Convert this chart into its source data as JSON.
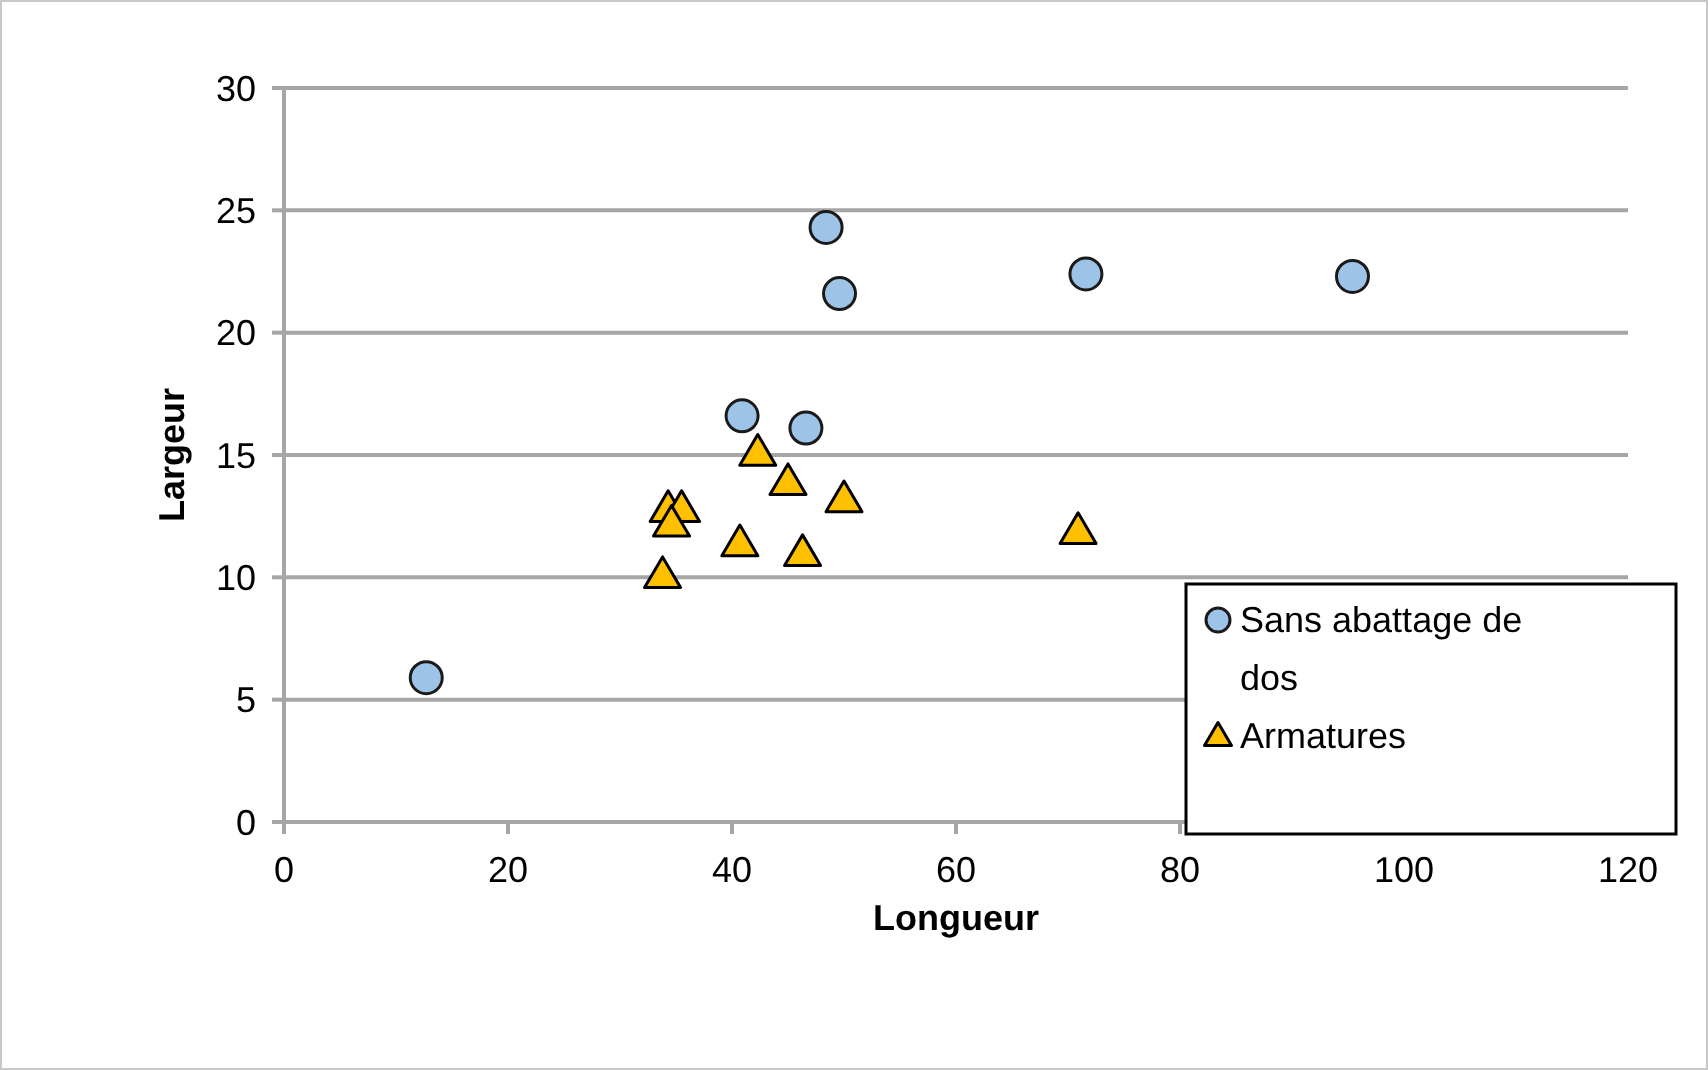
{
  "chart_data": {
    "type": "scatter",
    "xlabel": "Longueur",
    "ylabel": "Largeur",
    "xlim": [
      0,
      120
    ],
    "xticks": [
      0,
      20,
      40,
      60,
      80,
      100,
      120
    ],
    "ylim": [
      0,
      30
    ],
    "yticks": [
      0,
      5,
      10,
      15,
      20,
      25,
      30
    ],
    "grid": "y",
    "legend": "bottom right",
    "series": [
      {
        "name": "Sans abattage de dos",
        "color": "#9dc3e6",
        "marker": "circle",
        "x": [
          12.7,
          48.4,
          49.6,
          40.9,
          46.6,
          71.6,
          95.4
        ],
        "values": [
          5.9,
          24.3,
          21.6,
          16.6,
          16.1,
          22.4,
          22.3
        ]
      },
      {
        "name": "Armatures",
        "color": "#ffc000",
        "marker": "triangle",
        "x": [
          42.3,
          45,
          50,
          34.3,
          35.5,
          34.6,
          40.7,
          46.3,
          33.8,
          70.9
        ],
        "values": [
          15.1,
          13.9,
          13.2,
          12.8,
          12.8,
          12.2,
          11.4,
          11.0,
          10.1,
          11.9
        ]
      }
    ]
  }
}
